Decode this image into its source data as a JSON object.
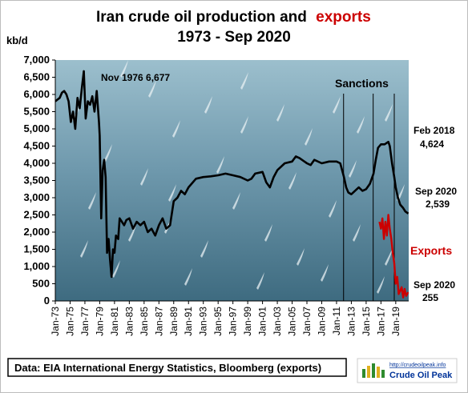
{
  "chart_data": {
    "type": "line",
    "title_prefix": "Iran crude oil production  and",
    "title_emph": "exports",
    "subtitle": "1973 - Sep 2020",
    "ylabel": "kb/d",
    "ylim": [
      0,
      7000
    ],
    "yticks": [
      0,
      500,
      1000,
      1500,
      2000,
      2500,
      3000,
      3500,
      4000,
      4500,
      5000,
      5500,
      6000,
      6500,
      7000
    ],
    "ytick_labels": [
      "0",
      "500",
      "1,000",
      "1,500",
      "2,000",
      "2,500",
      "3,000",
      "3,500",
      "4,000",
      "4,500",
      "5,000",
      "5,500",
      "6,000",
      "6,500",
      "7,000"
    ],
    "xlim": [
      1973.0,
      2020.75
    ],
    "xticks": [
      1973,
      1975,
      1977,
      1979,
      1981,
      1983,
      1985,
      1987,
      1989,
      1991,
      1993,
      1995,
      1997,
      1999,
      2001,
      2003,
      2005,
      2007,
      2009,
      2011,
      2013,
      2015,
      2017,
      2019
    ],
    "xtick_labels": [
      "Jan-73",
      "Jan-75",
      "Jan-77",
      "Jan-79",
      "Jan-81",
      "Jan-83",
      "Jan-85",
      "Jan-87",
      "Jan-89",
      "Jan-91",
      "Jan-93",
      "Jan-95",
      "Jan-97",
      "Jan-99",
      "Jan-01",
      "Jan-03",
      "Jan-05",
      "Jan-07",
      "Jan-09",
      "Jan-11",
      "Jan-13",
      "Jan-15",
      "Jan-17",
      "Jan-19"
    ],
    "series": [
      {
        "name": "",
        "color": "#000000",
        "x": [
          1973.0,
          1973.3,
          1973.6,
          1973.9,
          1974.2,
          1974.5,
          1974.8,
          1975.1,
          1975.4,
          1975.7,
          1976.0,
          1976.3,
          1976.6,
          1976.85,
          1977.1,
          1977.4,
          1977.7,
          1978.0,
          1978.3,
          1978.6,
          1978.9,
          1979.0,
          1979.2,
          1979.4,
          1979.6,
          1979.8,
          1980.0,
          1980.2,
          1980.4,
          1980.6,
          1980.8,
          1981.0,
          1981.2,
          1981.5,
          1981.7,
          1982.0,
          1982.3,
          1982.6,
          1983.0,
          1983.5,
          1984.0,
          1984.5,
          1985.0,
          1985.5,
          1986.0,
          1986.5,
          1987.0,
          1987.5,
          1988.0,
          1988.5,
          1989.0,
          1989.5,
          1990.0,
          1990.5,
          1991.0,
          1992.0,
          1993.0,
          1994.0,
          1995.0,
          1996.0,
          1997.0,
          1998.0,
          1999.0,
          1999.5,
          2000.0,
          2001.0,
          2001.5,
          2002.0,
          2002.5,
          2003.0,
          2004.0,
          2005.0,
          2005.5,
          2006.0,
          2007.0,
          2007.5,
          2008.0,
          2009.0,
          2010.0,
          2011.0,
          2011.5,
          2012.0,
          2012.3,
          2012.6,
          2013.0,
          2013.5,
          2014.0,
          2014.5,
          2015.0,
          2015.5,
          2016.0,
          2016.3,
          2016.6,
          2017.0,
          2017.5,
          2018.0,
          2018.2,
          2018.5,
          2018.8,
          2019.0,
          2019.3,
          2019.6,
          2020.0,
          2020.3,
          2020.7
        ],
        "y": [
          5800,
          5850,
          5900,
          6050,
          6100,
          6000,
          5800,
          5200,
          5500,
          5000,
          5900,
          5600,
          6200,
          6677,
          5300,
          5800,
          5700,
          5950,
          5500,
          6100,
          5200,
          4800,
          2400,
          3800,
          4100,
          3600,
          1400,
          1800,
          1200,
          700,
          1500,
          1400,
          1900,
          1800,
          2400,
          2300,
          2200,
          2350,
          2400,
          2100,
          2300,
          2200,
          2300,
          2000,
          2100,
          1900,
          2200,
          2400,
          2100,
          2200,
          2900,
          3000,
          3200,
          3100,
          3300,
          3550,
          3600,
          3620,
          3650,
          3700,
          3650,
          3600,
          3500,
          3550,
          3700,
          3750,
          3450,
          3300,
          3600,
          3800,
          4000,
          4050,
          4200,
          4150,
          4000,
          3950,
          4100,
          4000,
          4050,
          4050,
          4000,
          3600,
          3300,
          3150,
          3100,
          3200,
          3300,
          3200,
          3250,
          3400,
          3700,
          4100,
          4450,
          4550,
          4550,
          4624,
          4500,
          4000,
          3600,
          3300,
          3000,
          2800,
          2700,
          2600,
          2539
        ]
      },
      {
        "name": "Exports",
        "color": "#cc0000",
        "x": [
          2016.8,
          2017.0,
          2017.2,
          2017.4,
          2017.6,
          2017.8,
          2018.0,
          2018.2,
          2018.4,
          2018.6,
          2018.8,
          2019.0,
          2019.2,
          2019.4,
          2019.6,
          2019.8,
          2020.0,
          2020.2,
          2020.4,
          2020.7
        ],
        "y": [
          2300,
          2100,
          2400,
          1800,
          2300,
          1900,
          2500,
          2100,
          1800,
          1400,
          1100,
          500,
          700,
          200,
          300,
          400,
          100,
          350,
          150,
          255
        ]
      }
    ],
    "sanctions_lines_x": [
      2011.95,
      2015.95,
      2018.8
    ],
    "annotations": {
      "sanctions": "Sanctions",
      "nov1976": "Nov 1976 6,677",
      "feb2018_date": "Feb 2018",
      "feb2018_value": "4,624",
      "sep2020_prod_date": "Sep 2020",
      "sep2020_prod_value": "2,539",
      "exports_label": "Exports",
      "sep2020_exp_date": "Sep 2020",
      "sep2020_exp_value": "255"
    },
    "grid": false
  },
  "source_text": "Data: EIA International Energy Statistics, Bloomberg (exports)",
  "logo": {
    "url_text": "http://crudeoilpeak.info",
    "name_text": "Crude Oil Peak"
  },
  "colors": {
    "production": "#000000",
    "exports": "#cc0000",
    "sea_light": "#8fb4c4",
    "sea_dark": "#3f6f84",
    "logo_text": "#003399"
  },
  "background_description_icon": "sea-with-boats-photo"
}
